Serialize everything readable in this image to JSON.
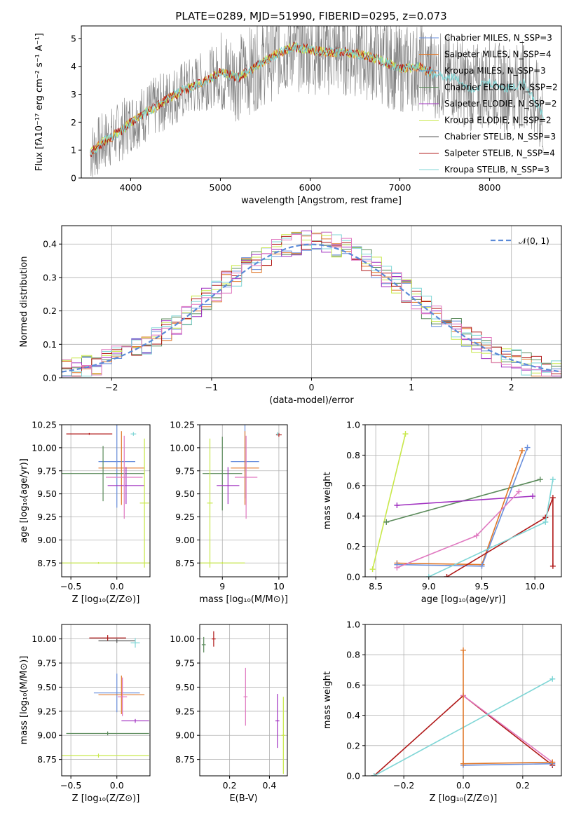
{
  "figure_title": "PLATE=0289, MJD=51990, FIBERID=0295, z=0.073",
  "colors": {
    "chabrier_miles": "#6a8fdc",
    "salpeter_miles": "#e0782a",
    "kroupa_miles": "#5aa0e0",
    "chabrier_elodie": "#5a8a5a",
    "salpeter_elodie": "#a030c0",
    "kroupa_elodie": "#c8e84a",
    "chabrier_stelib": "#555555",
    "salpeter_stelib": "#b01818",
    "kroupa_stelib": "#7fd6d6",
    "pink": "#e078c0",
    "data": "#808080",
    "normal": "#5a8ad8"
  },
  "chart_data": [
    {
      "id": "spectrum",
      "type": "line",
      "xlabel": "wavelength [Angstrom, rest frame]",
      "ylabel": "Flux [fλ10⁻¹⁷ erg cm⁻² s⁻¹ A⁻¹]",
      "xlim": [
        3450,
        8800
      ],
      "ylim": [
        0,
        5.45
      ],
      "xticks": [
        4000,
        5000,
        6000,
        7000,
        8000
      ],
      "yticks": [
        0,
        1,
        2,
        3,
        4,
        5
      ],
      "legend_position": "right",
      "legend": [
        {
          "label": "Chabrier MILES, N_SSP=3",
          "color_key": "chabrier_miles"
        },
        {
          "label": "Salpeter MILES, N_SSP=4",
          "color_key": "salpeter_miles"
        },
        {
          "label": "Kroupa MILES, N_SSP=3",
          "color_key": "kroupa_miles"
        },
        {
          "label": "Chabrier ELODIE, N_SSP=2",
          "color_key": "chabrier_elodie"
        },
        {
          "label": "Salpeter ELODIE, N_SSP=2",
          "color_key": "salpeter_elodie"
        },
        {
          "label": "Kroupa ELODIE, N_SSP=2",
          "color_key": "kroupa_elodie"
        },
        {
          "label": "Chabrier STELIB, N_SSP=3",
          "color_key": "chabrier_stelib"
        },
        {
          "label": "Salpeter STELIB, N_SSP=4",
          "color_key": "salpeter_stelib"
        },
        {
          "label": "Kroupa STELIB, N_SSP=3",
          "color_key": "kroupa_stelib"
        }
      ],
      "continuum": {
        "wavelength": [
          3550,
          3700,
          3900,
          4000,
          4100,
          4300,
          4500,
          4700,
          4900,
          5000,
          5200,
          5400,
          5600,
          5800,
          6000,
          6200,
          6400,
          6600,
          6800,
          7000,
          7200,
          7400,
          7600,
          7800,
          8000,
          8200,
          8400,
          8600
        ],
        "flux": [
          0.9,
          1.3,
          1.7,
          2.0,
          2.2,
          2.6,
          3.0,
          3.3,
          3.6,
          3.8,
          3.6,
          4.0,
          4.4,
          4.7,
          4.6,
          4.5,
          4.5,
          4.4,
          4.2,
          3.9,
          4.0,
          3.7,
          3.6,
          3.2,
          3.4,
          3.2,
          3.4,
          2.2
        ]
      }
    },
    {
      "id": "residuals",
      "type": "area",
      "xlabel": "(data-model)/error",
      "ylabel": "Normed distribution",
      "xlim": [
        -2.5,
        2.5
      ],
      "ylim": [
        0,
        0.455
      ],
      "xticks": [
        -2,
        -1,
        0,
        1,
        2
      ],
      "yticks": [
        0.0,
        0.1,
        0.2,
        0.3,
        0.4
      ],
      "legend_position": "top-right",
      "legend": [
        {
          "label": "𝒩(0, 1)",
          "color_key": "normal"
        }
      ],
      "grid": true
    },
    {
      "id": "z-age",
      "type": "scatter",
      "xlabel": "Z [log₁₀(Z/Z⊙)]",
      "ylabel": "age  [log₁₀(age/yr)]",
      "xlim": [
        -0.6,
        0.36
      ],
      "ylim": [
        8.6,
        10.25
      ],
      "xticks": [
        -0.5,
        0.0
      ],
      "xtick_labels": [
        "−0.5",
        "0.0"
      ],
      "yticks": [
        8.75,
        9.0,
        9.25,
        9.5,
        9.75,
        10.0,
        10.25
      ],
      "grid": true
    },
    {
      "id": "mass-age",
      "type": "scatter",
      "xlabel": "mass [log₁₀(M/M⊙)]",
      "xlim": [
        8.6,
        10.15
      ],
      "ylim": [
        8.6,
        10.25
      ],
      "xticks": [
        9,
        10
      ],
      "yticks": [
        8.75,
        9.0,
        9.25,
        9.5,
        9.75,
        10.0,
        10.25
      ],
      "grid": true
    },
    {
      "id": "age-weight",
      "type": "line",
      "xlabel": "age  [log₁₀(age/yr)]",
      "ylabel": "mass weight",
      "xlim": [
        8.4,
        10.25
      ],
      "ylim": [
        0,
        1.0
      ],
      "xticks": [
        8.5,
        9.0,
        9.5,
        10.0
      ],
      "yticks": [
        0.0,
        0.2,
        0.4,
        0.6,
        0.8,
        1.0
      ],
      "grid": true,
      "series": [
        {
          "color_key": "kroupa_elodie",
          "x": [
            8.47,
            8.78
          ],
          "y": [
            0.05,
            0.94
          ]
        },
        {
          "color_key": "chabrier_elodie",
          "x": [
            8.6,
            10.05
          ],
          "y": [
            0.36,
            0.64
          ]
        },
        {
          "color_key": "salpeter_elodie",
          "x": [
            8.7,
            9.98
          ],
          "y": [
            0.47,
            0.53
          ]
        },
        {
          "color_key": "salpeter_miles",
          "x": [
            8.7,
            9.5,
            9.88
          ],
          "y": [
            0.09,
            0.08,
            0.83
          ]
        },
        {
          "color_key": "chabrier_miles",
          "x": [
            8.7,
            9.5,
            9.93
          ],
          "y": [
            0.08,
            0.07,
            0.85
          ]
        },
        {
          "color_key": "pink",
          "x": [
            8.7,
            9.45,
            9.85
          ],
          "y": [
            0.06,
            0.27,
            0.56
          ]
        },
        {
          "color_key": "salpeter_stelib",
          "x": [
            9.17,
            10.1,
            10.17,
            10.17
          ],
          "y": [
            0.0,
            0.39,
            0.52,
            0.07
          ]
        },
        {
          "color_key": "kroupa_stelib",
          "x": [
            9.0,
            10.1,
            10.17
          ],
          "y": [
            0.0,
            0.36,
            0.64
          ]
        }
      ]
    },
    {
      "id": "z-mass",
      "type": "scatter",
      "xlabel": "Z [log₁₀(Z/Z⊙)]",
      "ylabel": "mass [log₁₀(M/M⊙)]",
      "xlim": [
        -0.6,
        0.36
      ],
      "ylim": [
        8.58,
        10.15
      ],
      "xticks": [
        -0.5,
        0.0
      ],
      "xtick_labels": [
        "−0.5",
        "0.0"
      ],
      "yticks": [
        8.75,
        9.0,
        9.25,
        9.5,
        9.75,
        10.0
      ],
      "grid": true
    },
    {
      "id": "ebv-mass",
      "type": "scatter",
      "xlabel": "E(B-V)",
      "xlim": [
        0.05,
        0.49
      ],
      "ylim": [
        8.58,
        10.15
      ],
      "xticks": [
        0.2,
        0.4
      ],
      "yticks": [
        8.75,
        9.0,
        9.25,
        9.5,
        9.75,
        10.0
      ],
      "grid": true
    },
    {
      "id": "z-weight",
      "type": "line",
      "xlabel": "Z [log₁₀(Z/Z⊙)]",
      "ylabel": "mass weight",
      "xlim": [
        -0.33,
        0.33
      ],
      "ylim": [
        0,
        1.0
      ],
      "xticks": [
        -0.2,
        0.0,
        0.2
      ],
      "xtick_labels": [
        "−0.2",
        "0.0",
        "0.2"
      ],
      "yticks": [
        0.0,
        0.2,
        0.4,
        0.6,
        0.8,
        1.0
      ],
      "grid": true,
      "series": [
        {
          "color_key": "salpeter_stelib",
          "x": [
            -0.3,
            0.0,
            0.3
          ],
          "y": [
            0.0,
            0.53,
            0.07
          ]
        },
        {
          "color_key": "pink",
          "x": [
            0.0,
            0.3
          ],
          "y": [
            0.53,
            0.09
          ]
        },
        {
          "color_key": "kroupa_stelib",
          "x": [
            -0.3,
            0.3
          ],
          "y": [
            0.0,
            0.64
          ]
        },
        {
          "color_key": "chabrier_miles",
          "x": [
            0.0,
            0.3
          ],
          "y": [
            0.07,
            0.08
          ]
        },
        {
          "color_key": "salpeter_miles",
          "x": [
            0.0,
            0.0,
            0.3
          ],
          "y": [
            0.83,
            0.08,
            0.09
          ]
        }
      ]
    }
  ]
}
